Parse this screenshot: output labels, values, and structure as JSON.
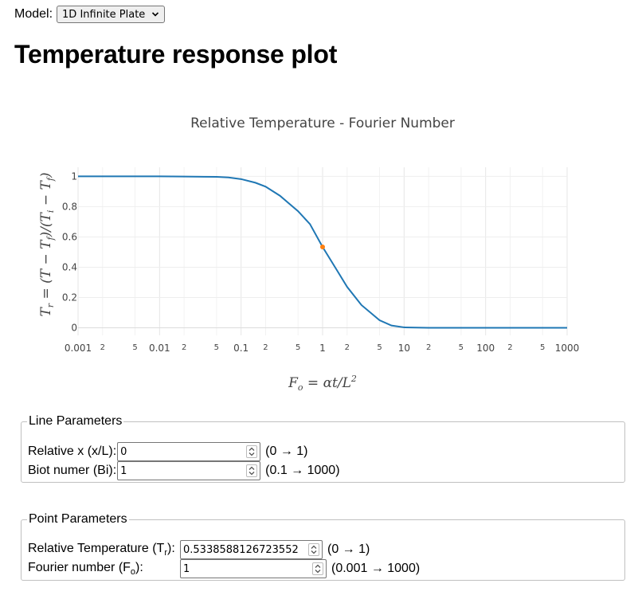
{
  "model": {
    "label": "Model:",
    "selected": "1D Infinite Plate"
  },
  "page_title": "Temperature response plot",
  "chart_data": {
    "type": "line",
    "title": "Relative Temperature - Fourier Number",
    "xlabel": "F_o = αt/L^2",
    "ylabel": "T_r = (T - T_f)/(T_i - T_f)",
    "x_scale": "log",
    "xlim": [
      0.001,
      1000
    ],
    "ylim": [
      -0.05,
      1.06
    ],
    "x_major_ticks": [
      {
        "value": 0.001,
        "label": "0.001"
      },
      {
        "value": 0.01,
        "label": "0.01"
      },
      {
        "value": 0.1,
        "label": "0.1"
      },
      {
        "value": 1,
        "label": "1"
      },
      {
        "value": 10,
        "label": "10"
      },
      {
        "value": 100,
        "label": "100"
      },
      {
        "value": 1000,
        "label": "1000"
      }
    ],
    "x_minor_ticks": [
      {
        "value": 0.002,
        "label": "2"
      },
      {
        "value": 0.005,
        "label": "5"
      },
      {
        "value": 0.02,
        "label": "2"
      },
      {
        "value": 0.05,
        "label": "5"
      },
      {
        "value": 0.2,
        "label": "2"
      },
      {
        "value": 0.5,
        "label": "5"
      },
      {
        "value": 2,
        "label": "2"
      },
      {
        "value": 5,
        "label": "5"
      },
      {
        "value": 20,
        "label": "2"
      },
      {
        "value": 50,
        "label": "5"
      },
      {
        "value": 200,
        "label": "2"
      },
      {
        "value": 500,
        "label": "5"
      }
    ],
    "y_ticks": [
      {
        "value": 0,
        "label": "0"
      },
      {
        "value": 0.2,
        "label": "0.2"
      },
      {
        "value": 0.4,
        "label": "0.4"
      },
      {
        "value": 0.6,
        "label": "0.6"
      },
      {
        "value": 0.8,
        "label": "0.8"
      },
      {
        "value": 1,
        "label": "1"
      }
    ],
    "series": [
      {
        "name": "Tr",
        "color": "#1f77b4",
        "x": [
          0.001,
          0.002,
          0.005,
          0.01,
          0.02,
          0.05,
          0.07,
          0.1,
          0.15,
          0.2,
          0.3,
          0.5,
          0.7,
          1,
          1.5,
          2,
          3,
          5,
          7,
          10,
          20,
          50,
          100,
          1000
        ],
        "y": [
          1,
          1,
          1,
          1,
          0.999,
          0.997,
          0.993,
          0.982,
          0.958,
          0.932,
          0.872,
          0.77,
          0.685,
          0.534,
          0.38,
          0.27,
          0.15,
          0.05,
          0.015,
          0.003,
          0.0,
          0.0,
          0.0,
          0.0
        ]
      }
    ],
    "point": {
      "x": 1,
      "y": 0.5338588126723552,
      "color": "#ff7f0e"
    }
  },
  "line_params": {
    "legend": "Line Parameters",
    "rows": [
      {
        "label": "Relative x (x/L):",
        "value": "0",
        "range": "(0 → 1)"
      },
      {
        "label": "Biot numer (Bi):",
        "value": "1",
        "range": "(0.1 → 1000)"
      }
    ]
  },
  "point_params": {
    "legend": "Point Parameters",
    "tr_label_main": "Relative Temperature (T",
    "tr_label_sub": "r",
    "tr_label_end": "):",
    "tr_value": "0.5338588126723552",
    "tr_range": "(0 → 1)",
    "fo_label_main": "Fourier number (F",
    "fo_label_sub": "o",
    "fo_label_end": "):",
    "fo_value": "1",
    "fo_range": "(0.001 → 1000)"
  },
  "icons": {
    "chevron": "chevron-down-icon",
    "spinner": "spinner-arrows-icon"
  }
}
